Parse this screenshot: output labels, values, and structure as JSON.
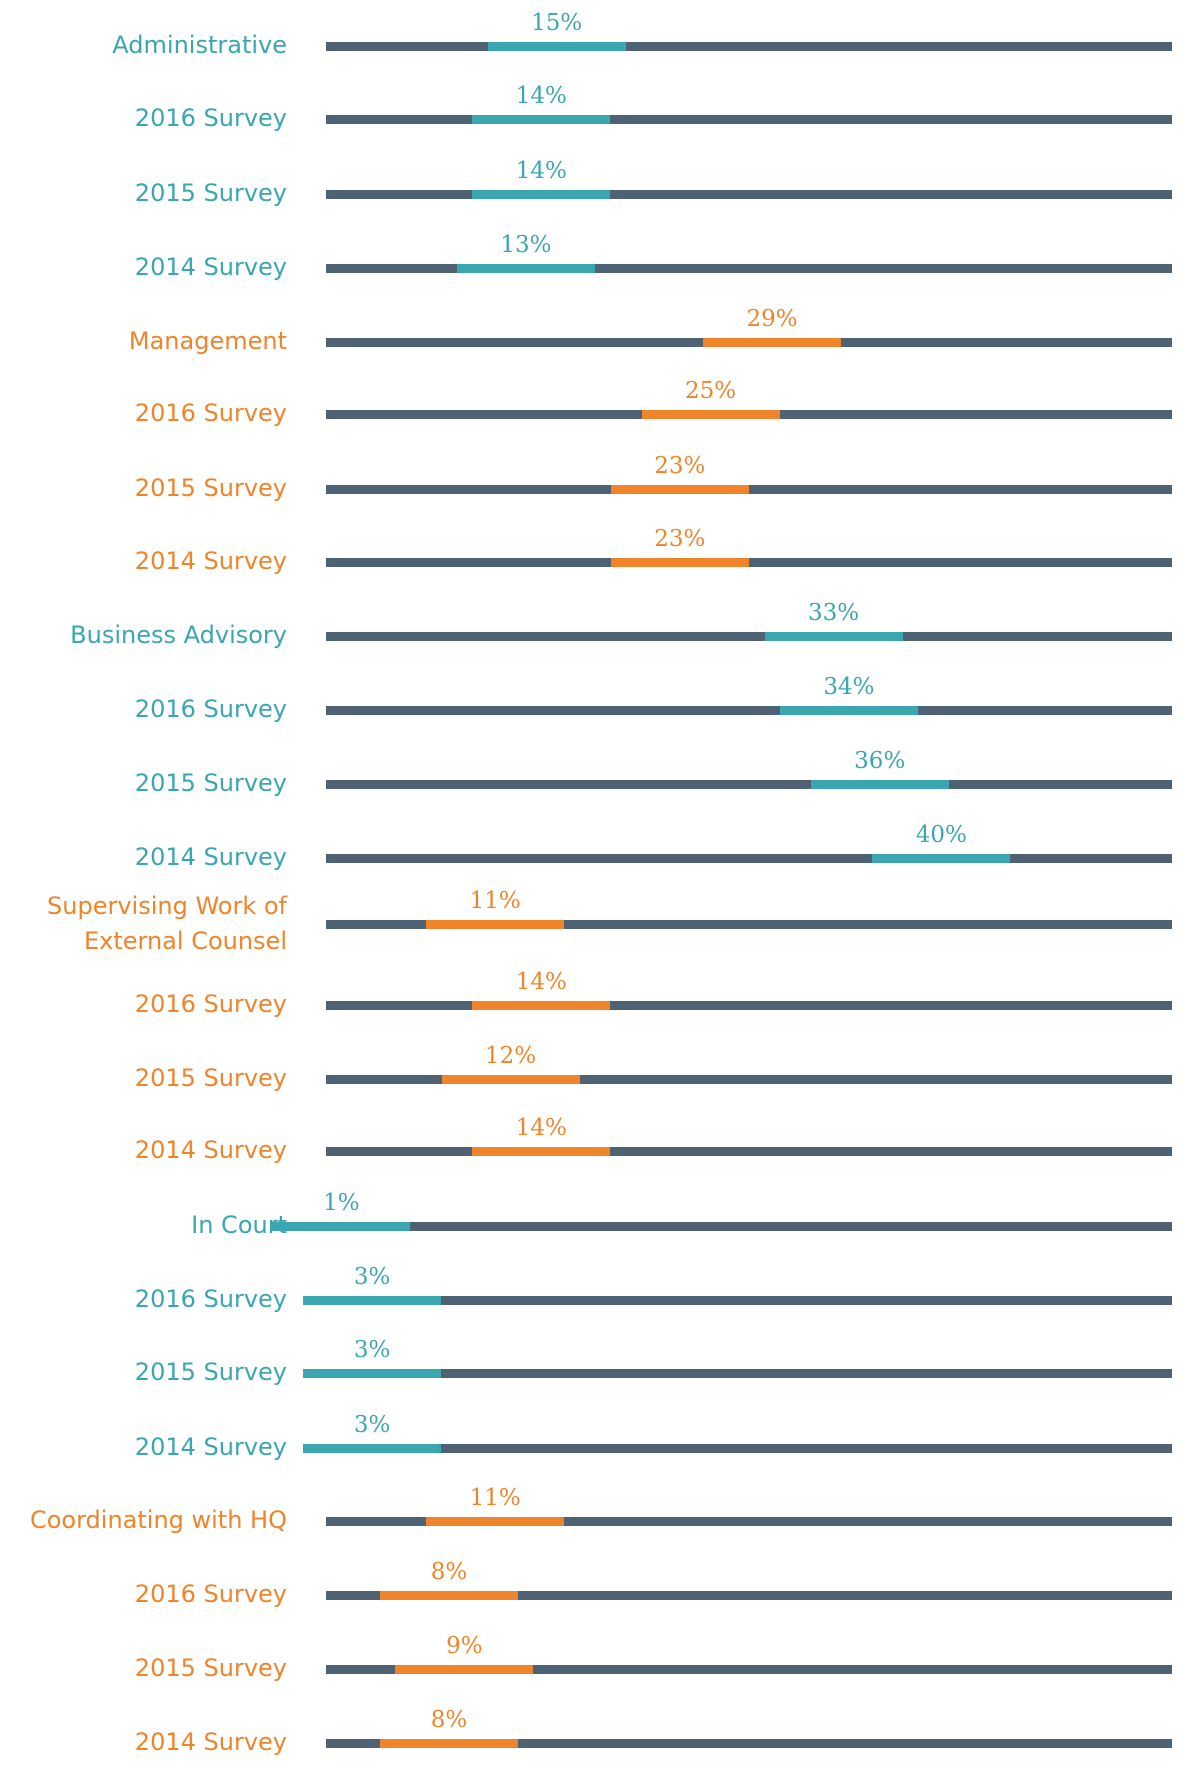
{
  "chart_data": {
    "type": "dot-track",
    "categories": [
      "Administrative",
      "2016 Survey",
      "2015 Survey",
      "2014 Survey",
      "Management",
      "2016 Survey",
      "2015 Survey",
      "2014 Survey",
      "Business Advisory",
      "2016 Survey",
      "2015 Survey",
      "2014 Survey",
      "Supervising Work of External Counsel",
      "2016 Survey",
      "2015 Survey",
      "2014 Survey",
      "In Court",
      "2016 Survey",
      "2015 Survey",
      "2014 Survey",
      "Coordinating with HQ",
      "2016 Survey",
      "2015 Survey",
      "2014 Survey"
    ],
    "values": [
      15,
      14,
      14,
      13,
      29,
      25,
      23,
      23,
      33,
      34,
      36,
      40,
      11,
      14,
      12,
      14,
      1,
      3,
      3,
      3,
      11,
      8,
      9,
      8
    ],
    "value_labels": [
      "15%",
      "14%",
      "14%",
      "13%",
      "29%",
      "25%",
      "23%",
      "23%",
      "33%",
      "34%",
      "36%",
      "40%",
      "11%",
      "14%",
      "12%",
      "14%",
      "1%",
      "3%",
      "3%",
      "3%",
      "11%",
      "8%",
      "9%",
      "8%"
    ],
    "colors": [
      "#3aa6b0",
      "#3aa6b0",
      "#3aa6b0",
      "#3aa6b0",
      "#f0842a",
      "#f0842a",
      "#f0842a",
      "#f0842a",
      "#3aa6b0",
      "#3aa6b0",
      "#3aa6b0",
      "#3aa6b0",
      "#f0842a",
      "#f0842a",
      "#f0842a",
      "#f0842a",
      "#3aa6b0",
      "#3aa6b0",
      "#3aa6b0",
      "#3aa6b0",
      "#f0842a",
      "#f0842a",
      "#f0842a",
      "#f0842a"
    ],
    "track_color": "#4e6274",
    "xlim": [
      0,
      55
    ]
  }
}
